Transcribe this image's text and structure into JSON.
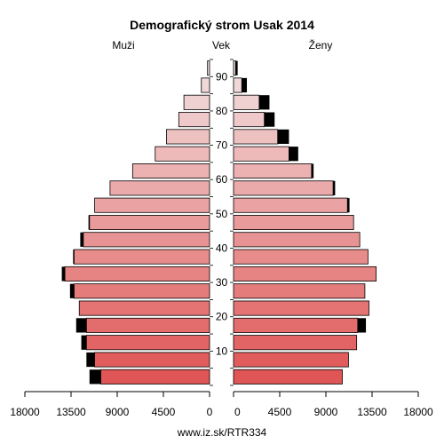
{
  "chart_data": {
    "type": "bar",
    "title": "Demografický strom Usak 2014",
    "left_label": "Muži",
    "center_label": "Vek",
    "right_label": "Ženy",
    "source": "www.iz.sk/RTR334",
    "xlim": [
      0,
      18000
    ],
    "x_ticks": [
      18000,
      13500,
      9000,
      4500,
      0,
      4500,
      9000,
      13500,
      18000
    ],
    "age_groups": [
      "0-4",
      "5-9",
      "10-14",
      "15-19",
      "20-24",
      "25-29",
      "30-34",
      "35-39",
      "40-44",
      "45-49",
      "50-54",
      "55-59",
      "60-64",
      "65-69",
      "70-74",
      "75-79",
      "80-84",
      "85-89",
      "90+"
    ],
    "age_ticks": [
      "10",
      "20",
      "30",
      "40",
      "50",
      "60",
      "70",
      "80",
      "90"
    ],
    "male_base": [
      10600,
      11200,
      12000,
      12000,
      12700,
      13200,
      14100,
      13200,
      12300,
      11700,
      11200,
      9700,
      7500,
      5300,
      4200,
      3000,
      2500,
      800,
      200
    ],
    "male_excess": [
      1100,
      800,
      500,
      1000,
      0,
      400,
      300,
      100,
      300,
      100,
      0,
      0,
      0,
      0,
      0,
      0,
      0,
      0,
      0
    ],
    "female_base": [
      10600,
      11200,
      12000,
      12100,
      13200,
      12800,
      13900,
      13100,
      12300,
      11700,
      11100,
      9700,
      7600,
      5400,
      4300,
      3000,
      2500,
      800,
      200
    ],
    "female_excess": [
      0,
      0,
      0,
      800,
      0,
      0,
      0,
      0,
      0,
      0,
      200,
      200,
      200,
      900,
      1100,
      1000,
      1000,
      500,
      200
    ],
    "colors": {
      "excess": "#000000",
      "outline": "#000000",
      "gradient_low": "#e05555",
      "gradient_high": "#f2e0e0"
    }
  }
}
